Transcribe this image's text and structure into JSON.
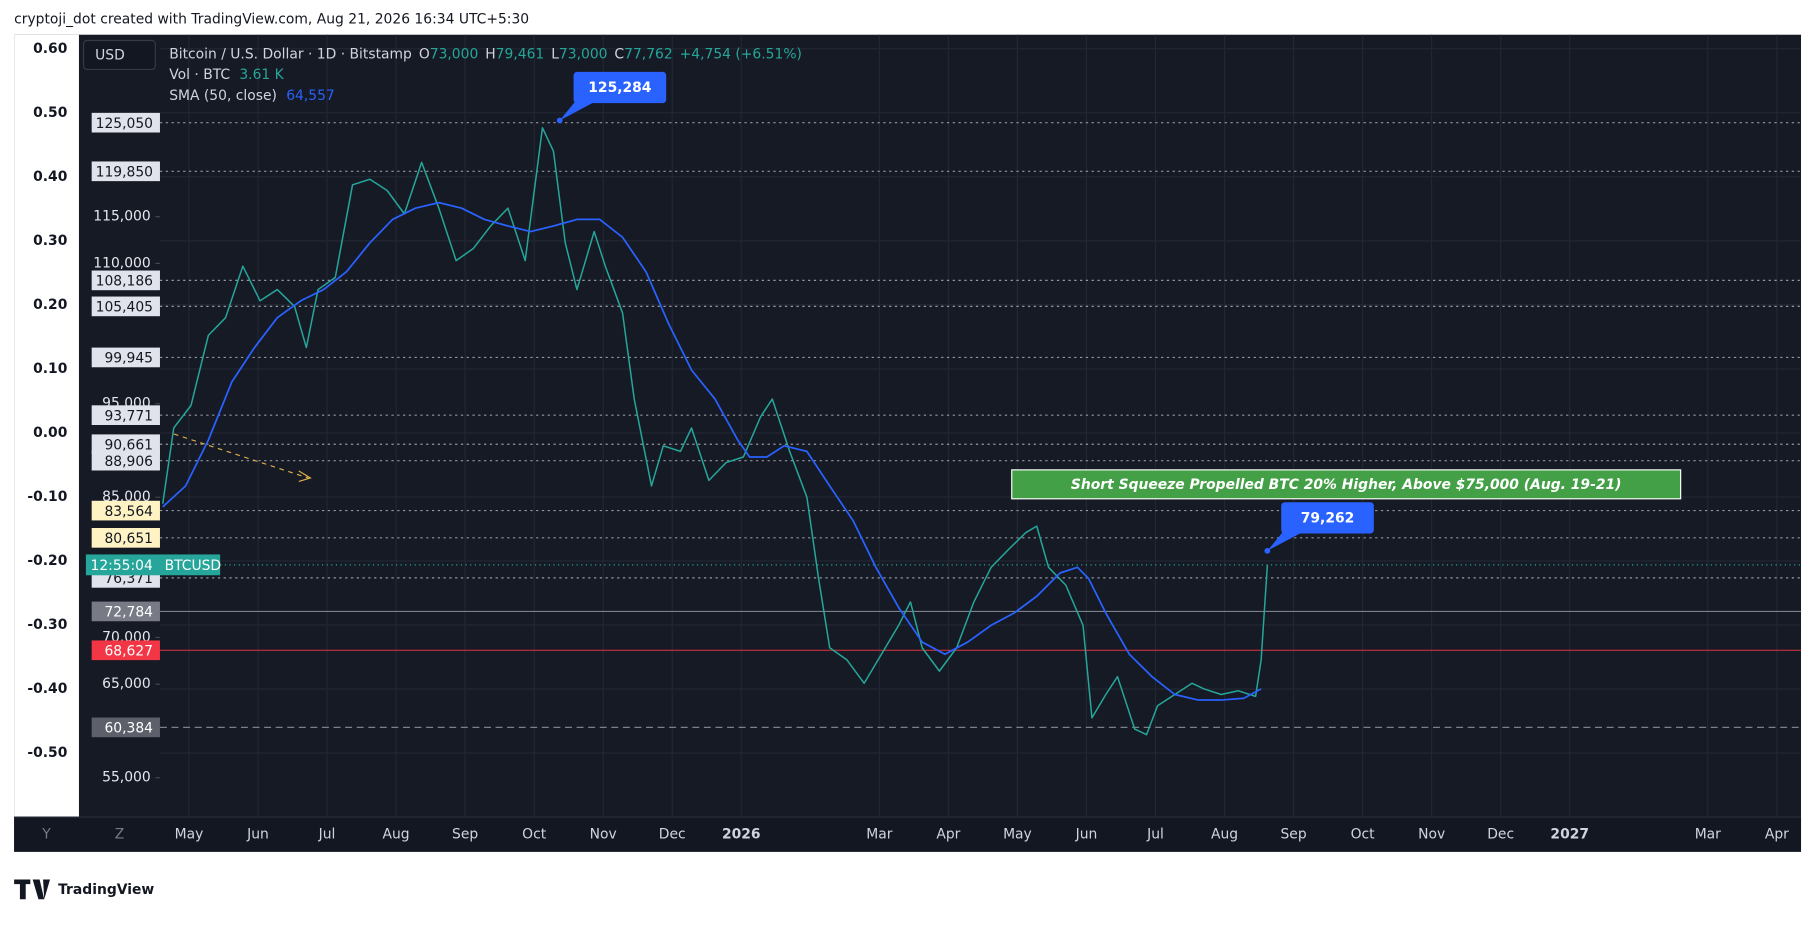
{
  "header": "cryptoji_dot created with TradingView.com, Aug 21, 2026 16:34 UTC+5:30",
  "currency_button": "USD",
  "footer_logo": "TradingView",
  "axis_buttons": [
    "Y",
    "Z"
  ],
  "legend": {
    "ohlc": [
      {
        "key": "O",
        "value": "73,000"
      },
      {
        "key": "H",
        "value": "79,461"
      },
      {
        "key": "L",
        "value": "73,000"
      },
      {
        "key": "C",
        "value": "77,762"
      }
    ],
    "change": "+4,754 (+6.51%)",
    "volume": {
      "label": "Vol · BTC",
      "value": "3.61 K"
    },
    "sma_value": "64,557"
  },
  "chart_data": {
    "type": "line",
    "annotation": "Short Squeeze Propelled BTC 20% Higher, Above $75,000 (Aug. 19-21)",
    "xlim": [
      -0.42,
      23.35
    ],
    "xticks": [
      {
        "value": 0,
        "label": "May"
      },
      {
        "value": 1,
        "label": "Jun"
      },
      {
        "value": 2,
        "label": "Jul"
      },
      {
        "value": 3,
        "label": "Aug"
      },
      {
        "value": 4,
        "label": "Sep"
      },
      {
        "value": 5,
        "label": "Oct"
      },
      {
        "value": 6,
        "label": "Nov"
      },
      {
        "value": 7,
        "label": "Dec"
      },
      {
        "value": 8,
        "label": "2026"
      },
      {
        "value": 10,
        "label": "Mar"
      },
      {
        "value": 11,
        "label": "Apr"
      },
      {
        "value": 12,
        "label": "May"
      },
      {
        "value": 13,
        "label": "Jun"
      },
      {
        "value": 14,
        "label": "Jul"
      },
      {
        "value": 15,
        "label": "Aug"
      },
      {
        "value": 16,
        "label": "Sep"
      },
      {
        "value": 17,
        "label": "Oct"
      },
      {
        "value": 18,
        "label": "Nov"
      },
      {
        "value": 19,
        "label": "Dec"
      },
      {
        "value": 20,
        "label": "2027"
      },
      {
        "value": 22,
        "label": "Mar"
      },
      {
        "value": 23,
        "label": "Apr"
      }
    ],
    "ylim": [
      50792,
      134456
    ],
    "yticks": [
      {
        "value": 115000,
        "label": "115,000"
      },
      {
        "value": 110000,
        "label": "110,000"
      },
      {
        "value": 95000,
        "label": "95,000"
      },
      {
        "value": 85000,
        "label": "85,000"
      },
      {
        "value": 70000,
        "label": "70,000"
      },
      {
        "value": 65000,
        "label": "65,000"
      },
      {
        "value": 55000,
        "label": "55,000"
      }
    ],
    "levels": [
      {
        "value": 125050,
        "label": "125,050",
        "style": "white"
      },
      {
        "value": 119850,
        "label": "119,850",
        "style": "white"
      },
      {
        "value": 108186,
        "label": "108,186",
        "style": "white"
      },
      {
        "value": 105405,
        "label": "105,405",
        "style": "white"
      },
      {
        "value": 99945,
        "label": "99,945",
        "style": "white"
      },
      {
        "value": 93771,
        "label": "93,771",
        "style": "white"
      },
      {
        "value": 90661,
        "label": "90,661",
        "style": "white"
      },
      {
        "value": 88906,
        "label": "88,906",
        "style": "white"
      },
      {
        "value": 83564,
        "label": "83,564",
        "style": "yellow"
      },
      {
        "value": 80651,
        "label": "80,651",
        "style": "yellow"
      },
      {
        "value": 76371,
        "label": "76,371",
        "style": "white"
      },
      {
        "value": 72784,
        "label": "72,784",
        "style": "grey"
      },
      {
        "value": 68627,
        "label": "68,627",
        "style": "red"
      },
      {
        "value": 60384,
        "label": "60,384",
        "style": "dark"
      }
    ],
    "y2lim": [
      -0.6,
      0.622
    ],
    "y2ticks": [
      {
        "value": 0.6,
        "label": "0.60"
      },
      {
        "value": 0.5,
        "label": "0.50"
      },
      {
        "value": 0.4,
        "label": "0.40"
      },
      {
        "value": 0.3,
        "label": "0.30"
      },
      {
        "value": 0.2,
        "label": "0.20"
      },
      {
        "value": 0.1,
        "label": "0.10"
      },
      {
        "value": 0,
        "label": "0.00"
      },
      {
        "value": -0.1,
        "label": "-0.10"
      },
      {
        "value": -0.2,
        "label": "-0.20"
      },
      {
        "value": -0.3,
        "label": "-0.30"
      },
      {
        "value": -0.4,
        "label": "-0.40"
      },
      {
        "value": -0.5,
        "label": "-0.50"
      }
    ],
    "grid": true,
    "last_price": {
      "value": 77762,
      "countdown": "12:55:04",
      "symbol": "BTCUSD",
      "color": "#26a69a"
    },
    "callouts": [
      {
        "x": 5.37,
        "value": 125284,
        "label": "125,284"
      },
      {
        "x": 15.62,
        "value": 79262,
        "label": "79,262"
      }
    ],
    "series": [
      {
        "name": "Bitcoin / U.S. Dollar · 1D · Bitstamp",
        "color": "#26a69a",
        "x": [
          -0.38,
          -0.22,
          0.03,
          0.28,
          0.53,
          0.78,
          1.03,
          1.28,
          1.53,
          1.7,
          1.87,
          2.12,
          2.37,
          2.62,
          2.87,
          3.12,
          3.37,
          3.62,
          3.87,
          4.12,
          4.37,
          4.62,
          4.87,
          5.12,
          5.28,
          5.45,
          5.62,
          5.87,
          6.03,
          6.28,
          6.45,
          6.7,
          6.87,
          7.12,
          7.28,
          7.53,
          7.78,
          8.03,
          8.28,
          8.45,
          8.7,
          8.95,
          9.12,
          9.28,
          9.53,
          9.78,
          10.03,
          10.28,
          10.45,
          10.62,
          10.87,
          11.12,
          11.37,
          11.62,
          11.87,
          12.12,
          12.28,
          12.45,
          12.7,
          12.95,
          13.08,
          13.28,
          13.45,
          13.7,
          13.87,
          14.03,
          14.28,
          14.53,
          14.7,
          14.95,
          15.2,
          15.45,
          15.53,
          15.62
        ],
        "values": [
          84300,
          92400,
          94800,
          102300,
          104200,
          109700,
          106000,
          107200,
          105400,
          101000,
          107200,
          108500,
          118400,
          119000,
          117800,
          115300,
          120800,
          115900,
          110300,
          111600,
          114000,
          115900,
          110300,
          124500,
          122000,
          112200,
          107200,
          113400,
          109700,
          104700,
          95500,
          86200,
          90500,
          89900,
          92400,
          86800,
          88700,
          89300,
          93600,
          95500,
          89900,
          85000,
          76300,
          68900,
          67600,
          65100,
          68200,
          71300,
          73800,
          68900,
          66400,
          68900,
          73800,
          77500,
          79400,
          81200,
          81900,
          77500,
          75600,
          71300,
          61400,
          63900,
          65800,
          60200,
          59600,
          62700,
          63900,
          65100,
          64500,
          63900,
          64300,
          63700,
          67600,
          77762
        ]
      },
      {
        "name": "SMA (50, close)",
        "color": "#2962ff",
        "x": [
          -0.38,
          -0.05,
          0.28,
          0.62,
          0.95,
          1.28,
          1.62,
          1.95,
          2.28,
          2.62,
          2.95,
          3.28,
          3.62,
          3.95,
          4.28,
          4.62,
          4.95,
          5.28,
          5.62,
          5.95,
          6.28,
          6.62,
          6.95,
          7.28,
          7.62,
          7.95,
          8.12,
          8.37,
          8.62,
          8.95,
          9.28,
          9.62,
          9.95,
          10.28,
          10.62,
          10.95,
          11.28,
          11.62,
          11.95,
          12.28,
          12.62,
          12.87,
          13.03,
          13.28,
          13.62,
          13.95,
          14.28,
          14.62,
          14.95,
          15.28,
          15.53
        ],
        "values": [
          83960,
          86200,
          91100,
          97300,
          101000,
          104200,
          106000,
          107200,
          109100,
          112200,
          114700,
          115900,
          116500,
          115900,
          114700,
          114000,
          113400,
          114000,
          114700,
          114700,
          112800,
          109100,
          103500,
          98600,
          95500,
          91100,
          89300,
          89300,
          90500,
          89900,
          86200,
          82500,
          77500,
          73200,
          69500,
          68200,
          69500,
          71300,
          72600,
          74400,
          76900,
          77500,
          76300,
          72600,
          68200,
          65800,
          63900,
          63300,
          63300,
          63500,
          64500
        ]
      }
    ]
  }
}
